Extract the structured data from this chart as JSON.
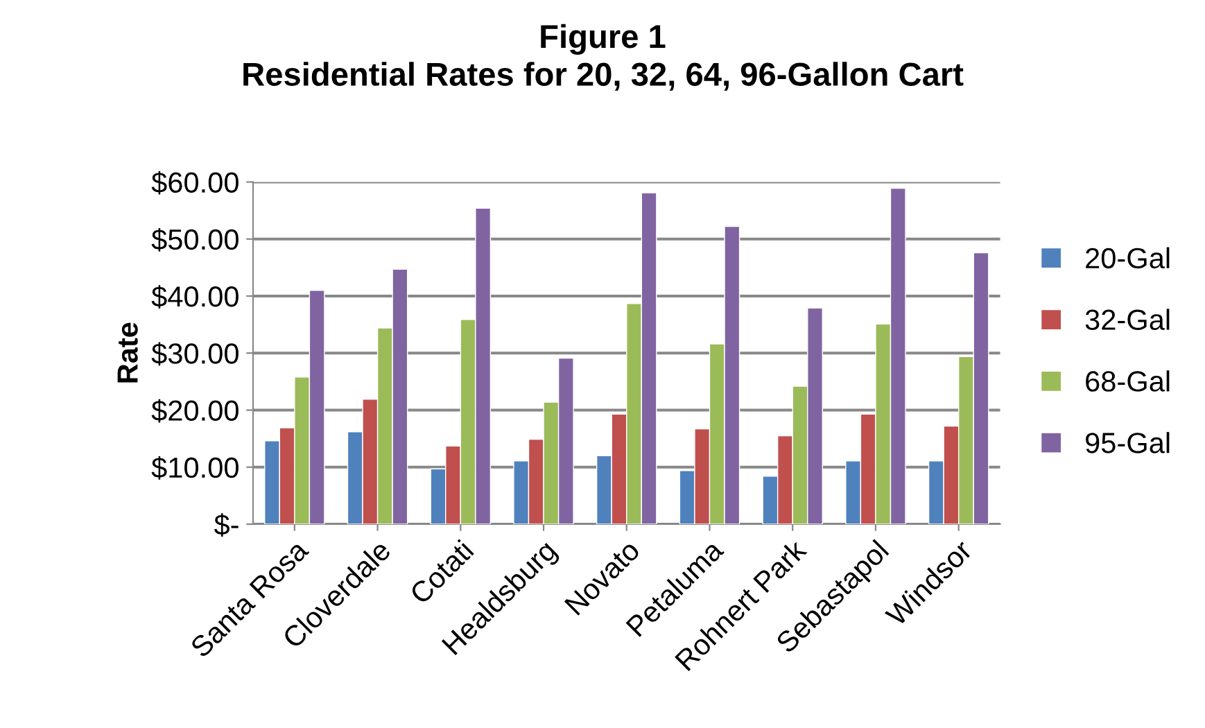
{
  "chart_data": {
    "type": "bar",
    "title": "Figure 1\nResidential Rates for 20, 32, 64, 96-Gallon Cart",
    "ylabel": "Rate",
    "categories": [
      "Santa Rosa",
      "Cloverdale",
      "Cotati",
      "Healdsburg",
      "Novato",
      "Petaluma",
      "Rohnert Park",
      "Sebastapol",
      "Windsor"
    ],
    "series": [
      {
        "name": "20-Gal",
        "color": "#4f81bd",
        "values": [
          14.6,
          16.2,
          9.7,
          11.1,
          12.0,
          9.4,
          8.4,
          11.1,
          11.1
        ]
      },
      {
        "name": "32-Gal",
        "color": "#c0504d",
        "values": [
          16.9,
          21.9,
          13.7,
          14.9,
          19.3,
          16.7,
          15.5,
          19.3,
          17.2
        ]
      },
      {
        "name": "68-Gal",
        "color": "#9bbb59",
        "values": [
          25.8,
          34.4,
          35.9,
          21.4,
          38.7,
          31.6,
          24.2,
          35.1,
          29.4
        ]
      },
      {
        "name": "95-Gal",
        "color": "#8064a2",
        "values": [
          41.0,
          44.7,
          55.4,
          29.1,
          58.1,
          52.2,
          37.9,
          58.9,
          47.6
        ]
      }
    ],
    "ylim": [
      0,
      60
    ],
    "yticks": [
      {
        "value": 0,
        "label": "$-"
      },
      {
        "value": 10,
        "label": "$10.00"
      },
      {
        "value": 20,
        "label": "$20.00"
      },
      {
        "value": 30,
        "label": "$30.00"
      },
      {
        "value": 40,
        "label": "$40.00"
      },
      {
        "value": 50,
        "label": "$50.00"
      },
      {
        "value": 60,
        "label": "$60.00"
      }
    ],
    "grid": "y",
    "legend": "right"
  }
}
